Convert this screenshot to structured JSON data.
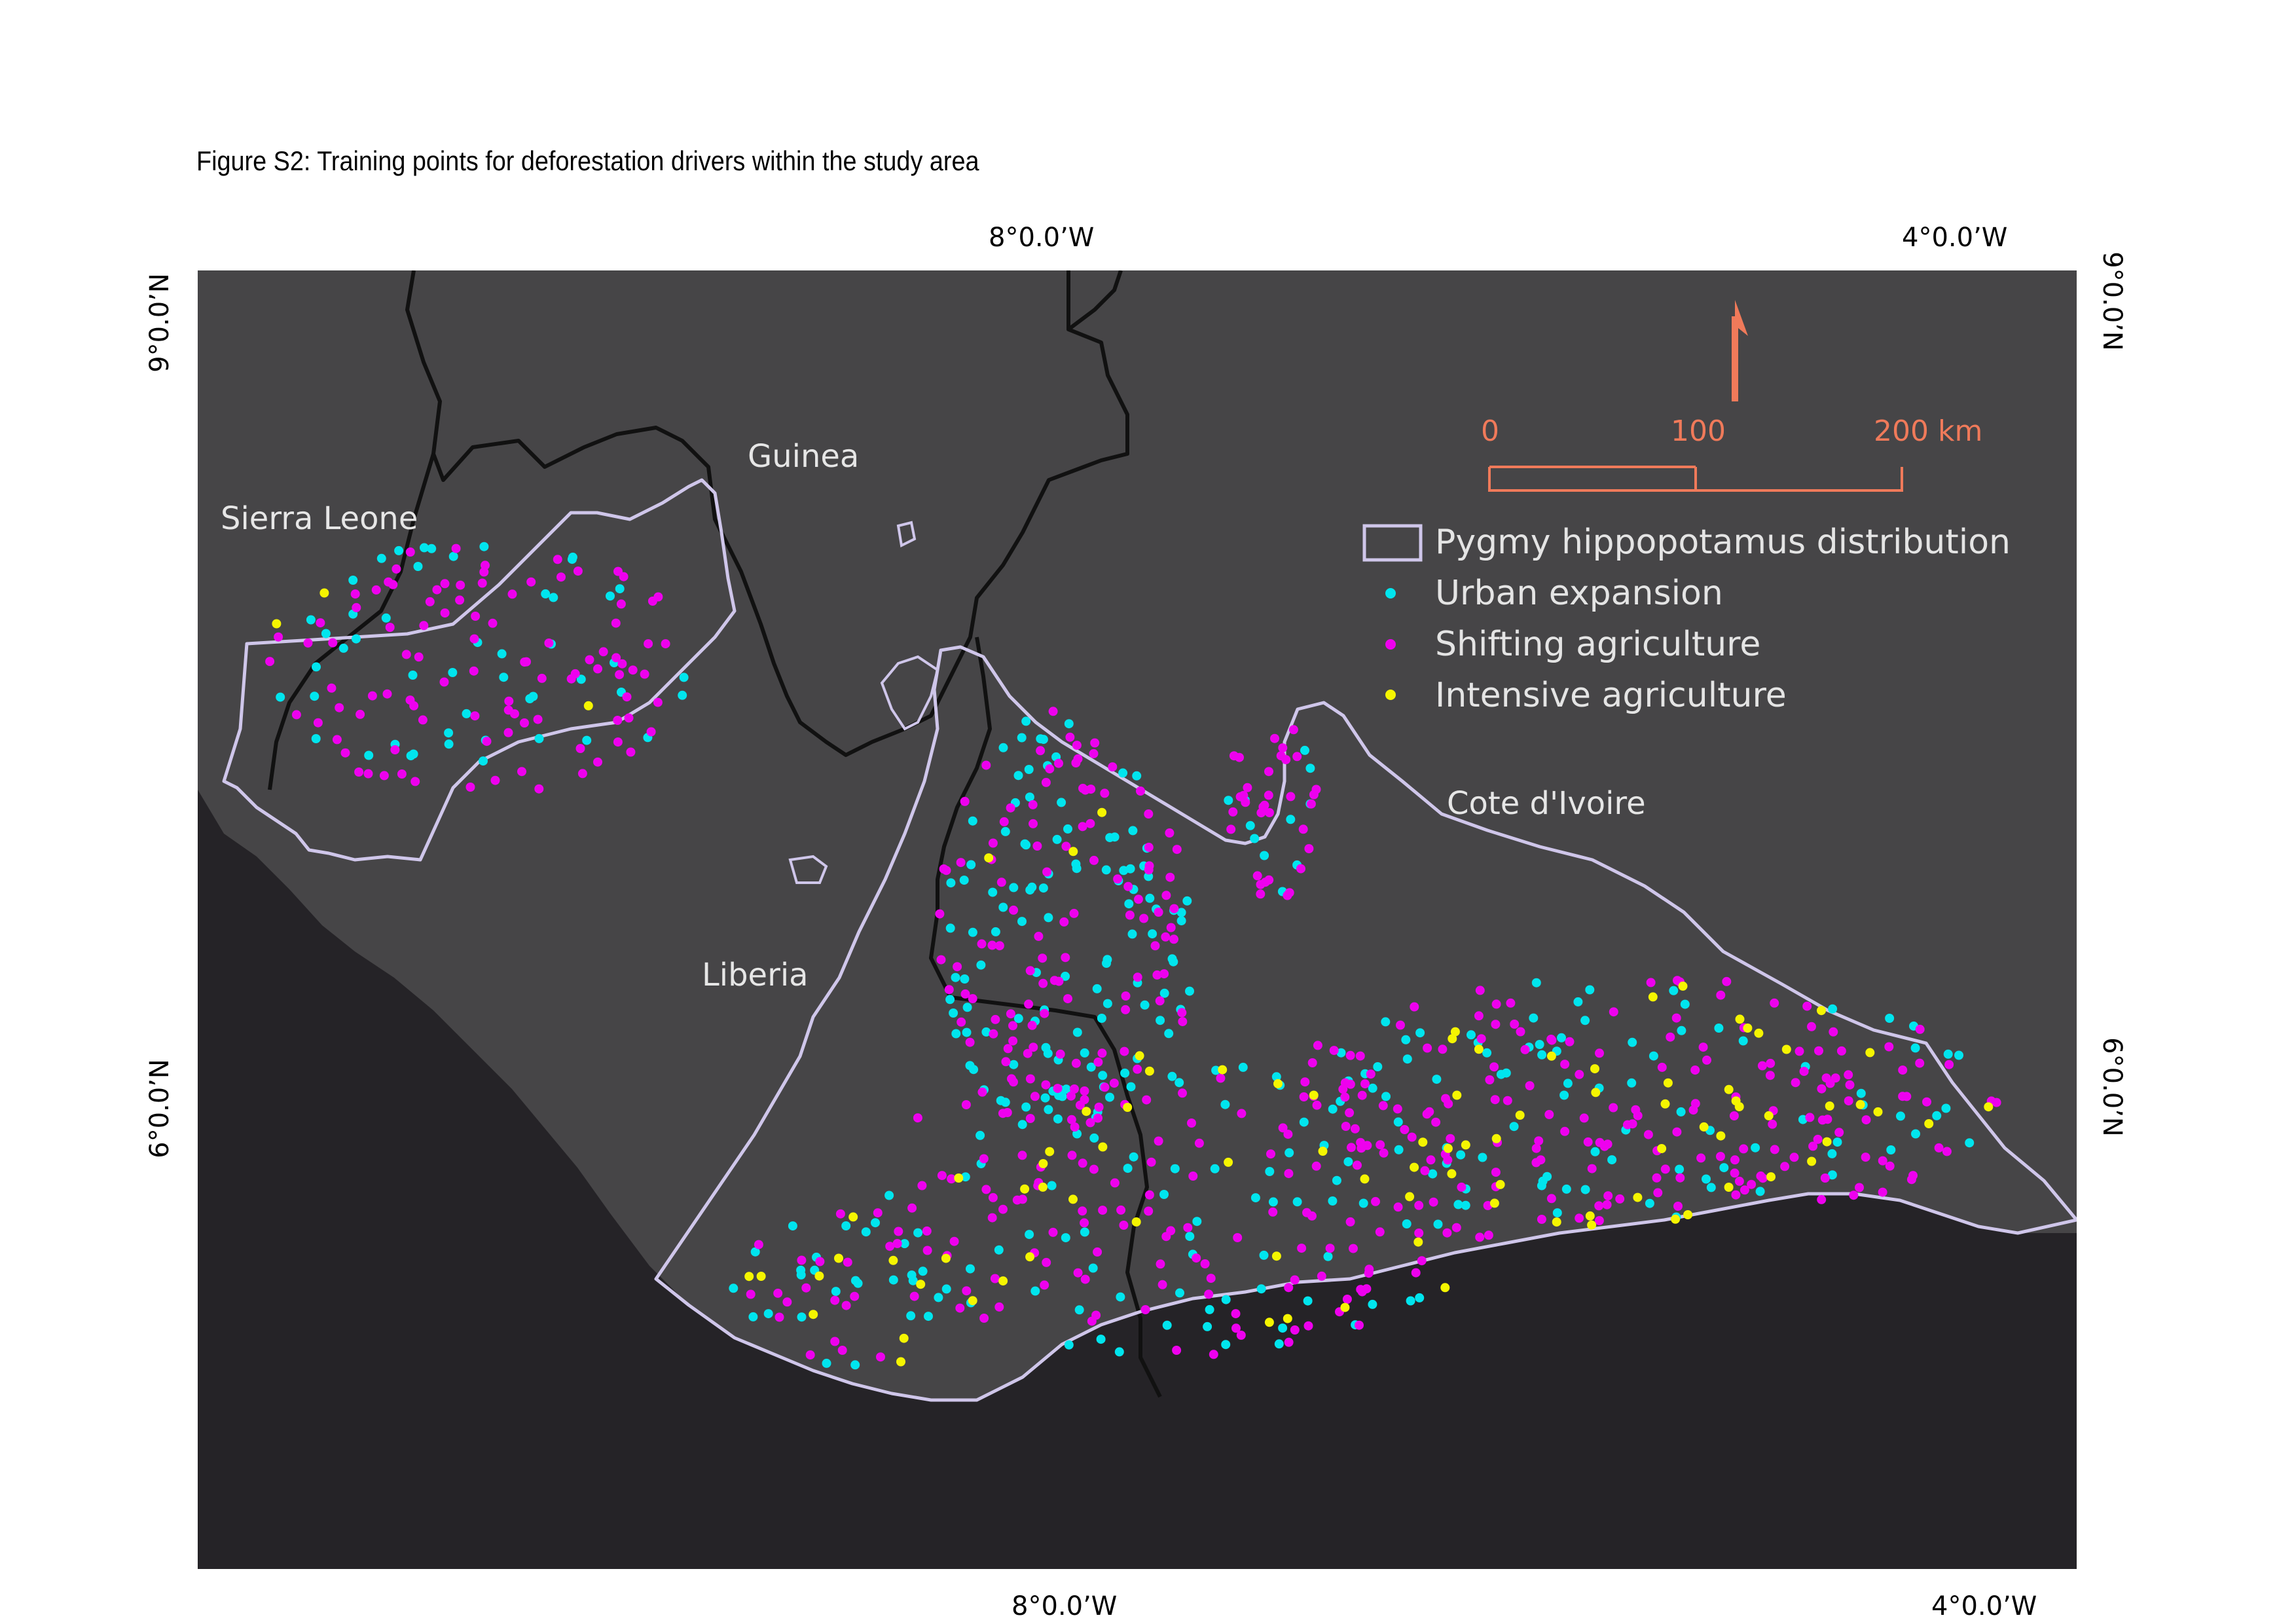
{
  "caption": "Figure S2: Training points for deforestation drivers within the study area",
  "graticule": {
    "top": [
      "8°0.0’W",
      "4°0.0’W"
    ],
    "bottom": [
      "8°0.0’W",
      "4°0.0’W"
    ],
    "left": [
      "9°0.0’N",
      "6°0.0’N"
    ],
    "right": [
      "9°0.0’N",
      "6°0.0’N"
    ]
  },
  "countries": {
    "guinea": "Guinea",
    "sierra_leone": "Sierra Leone",
    "liberia": "Liberia",
    "cote_divoire": "Cote d'Ivoire"
  },
  "scalebar": {
    "labels": [
      "0",
      "100",
      "200 km"
    ],
    "color": "#f07a5a"
  },
  "legend": {
    "distribution": "Pygmy hippopotamus distribution",
    "urban": "Urban expansion",
    "shifting": "Shifting agriculture",
    "intensive": "Intensive agriculture"
  },
  "colors": {
    "land": "#464547",
    "ocean": "#252327",
    "border": "#111111",
    "distribution": "#cfc6ea",
    "urban": "#00e5ee",
    "shifting": "#ee00ee",
    "intensive": "#f5f500",
    "legend_text": "#e4e4e4",
    "country_text": "#e6e6e6"
  },
  "icons": [
    "north-arrow-icon"
  ]
}
